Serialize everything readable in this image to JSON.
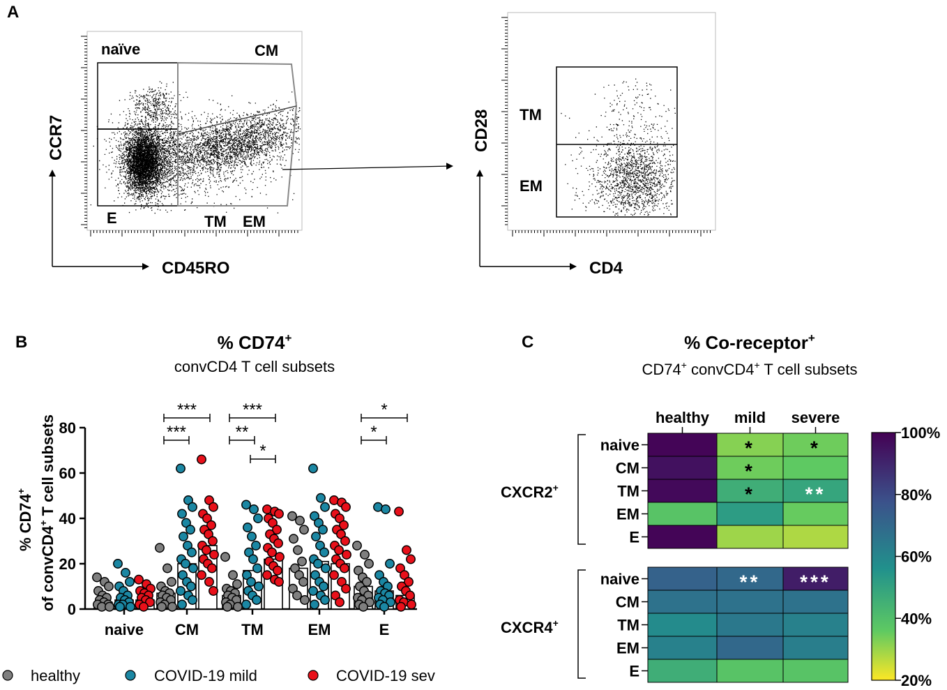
{
  "panel_a": {
    "label": "A",
    "flow1": {
      "x_axis": "CD45RO",
      "y_axis": "CCR7",
      "gates": {
        "naive": "naïve",
        "cm": "CM",
        "e": "E",
        "tm": "TM",
        "em": "EM"
      }
    },
    "flow2": {
      "x_axis": "CD4",
      "y_axis": "CD28",
      "gates": {
        "tm": "TM",
        "em": "EM"
      }
    }
  },
  "panel_b": {
    "label": "B",
    "title": "% CD74",
    "title_sup": "+",
    "subtitle": "convCD4 T cell subsets",
    "ylabel_line1": "% CD74",
    "ylabel_line1_sup": "+",
    "ylabel_line2a": "of convCD4",
    "ylabel_line2_sup": "+",
    "ylabel_line2b": " T cell subsets",
    "legend": [
      {
        "label": "healthy",
        "color": "#7f7f7f"
      },
      {
        "label": "COVID-19 mild",
        "color": "#1b87a3"
      },
      {
        "label": "COVID-19 sev",
        "color": "#e8101a"
      }
    ]
  },
  "panel_c": {
    "label": "C",
    "title": "% Co-receptor",
    "title_sup": "+",
    "subtitle_a": "CD74",
    "subtitle_sup1": "+",
    "subtitle_b": " convCD4",
    "subtitle_sup2": "+",
    "subtitle_c": " T cell subsets",
    "group1": "CXCR2",
    "group1_sup": "+",
    "group2": "CXCR4",
    "group2_sup": "+"
  },
  "chart_data": [
    {
      "type": "bar",
      "title": "% CD74+ convCD4 T cell subsets",
      "ylabel": "% CD74+ of convCD4+ T cell subsets",
      "ylim": [
        0,
        80
      ],
      "yticks": [
        "0",
        "20",
        "40",
        "60",
        "80"
      ],
      "categories": [
        "naive",
        "CM",
        "TM",
        "EM",
        "E"
      ],
      "series": [
        {
          "name": "healthy",
          "color": "#7f7f7f",
          "values": [
            3,
            7,
            6,
            18,
            10
          ],
          "points": [
            [
              14,
              12,
              10,
              8,
              6,
              5,
              4,
              3,
              2,
              2,
              1,
              1
            ],
            [
              27,
              18,
              12,
              10,
              8,
              7,
              6,
              5,
              4,
              3,
              2,
              1,
              1
            ],
            [
              23,
              15,
              11,
              9,
              8,
              7,
              6,
              5,
              4,
              3,
              2,
              1,
              1
            ],
            [
              41,
              39,
              35,
              31,
              26,
              21,
              18,
              15,
              12,
              9,
              6,
              4
            ],
            [
              28,
              24,
              20,
              17,
              14,
              12,
              10,
              8,
              6,
              5,
              4,
              3,
              2,
              1
            ]
          ]
        },
        {
          "name": "COVID-19 mild",
          "color": "#1b87a3",
          "values": [
            4,
            20,
            17,
            21,
            8
          ],
          "points": [
            [
              20,
              16,
              12,
              10,
              8,
              6,
              5,
              4,
              3,
              2,
              2,
              1,
              1
            ],
            [
              62,
              48,
              45,
              42,
              38,
              35,
              32,
              28,
              25,
              22,
              20,
              18,
              15,
              12,
              10,
              8,
              6,
              4,
              2
            ],
            [
              46,
              44,
              40,
              36,
              32,
              28,
              25,
              22,
              18,
              15,
              12,
              10,
              8,
              6,
              4,
              2
            ],
            [
              62,
              49,
              45,
              41,
              38,
              35,
              32,
              28,
              25,
              22,
              20,
              18,
              15,
              12,
              10,
              8,
              6,
              4,
              2
            ],
            [
              45,
              44,
              20,
              15,
              12,
              10,
              8,
              7,
              6,
              5,
              4,
              3,
              2,
              1
            ]
          ]
        },
        {
          "name": "COVID-19 sev",
          "color": "#e8101a",
          "values": [
            4,
            28,
            22,
            20,
            6
          ],
          "points": [
            [
              13,
              11,
              9,
              8,
              7,
              6,
              5,
              4,
              3,
              2,
              1
            ],
            [
              66,
              48,
              45,
              42,
              40,
              37,
              35,
              33,
              30,
              28,
              26,
              24,
              22,
              20,
              18,
              15,
              12,
              8
            ],
            [
              44,
              43,
              42,
              40,
              38,
              35,
              33,
              31,
              29,
              27,
              25,
              23,
              21,
              19,
              17,
              15,
              13,
              12
            ],
            [
              48,
              47,
              45,
              42,
              40,
              37,
              35,
              33,
              30,
              28,
              26,
              24,
              22,
              20,
              18,
              15,
              12,
              9,
              6,
              3
            ],
            [
              43,
              26,
              22,
              18,
              15,
              12,
              10,
              8,
              6,
              4,
              3,
              2,
              1
            ]
          ]
        }
      ],
      "significance": [
        {
          "category": "CM",
          "pair": "healthy-sev",
          "label": "***"
        },
        {
          "category": "CM",
          "pair": "healthy-mild",
          "label": "***"
        },
        {
          "category": "TM",
          "pair": "healthy-sev",
          "label": "***"
        },
        {
          "category": "TM",
          "pair": "healthy-mild",
          "label": "**"
        },
        {
          "category": "TM",
          "pair": "mild-sev",
          "label": "*"
        },
        {
          "category": "E",
          "pair": "healthy-sev",
          "label": "*"
        },
        {
          "category": "E",
          "pair": "healthy-mild",
          "label": "*"
        }
      ]
    },
    {
      "type": "heatmap",
      "title": "% Co-receptor+ CD74+ convCD4+ T cell subsets",
      "columns": [
        "healthy",
        "mild",
        "severe"
      ],
      "row_labels": [
        "naive",
        "CM",
        "TM",
        "EM",
        "E"
      ],
      "colorbar": {
        "min": 20,
        "max": 100,
        "ticks": [
          "100%",
          "80%",
          "60%",
          "40%",
          "20%"
        ]
      },
      "groups": [
        {
          "name": "CXCR2+",
          "values": [
            [
              99,
              35,
              38
            ],
            [
              96,
              38,
              40
            ],
            [
              98,
              50,
              53
            ],
            [
              42,
              56,
              39
            ],
            [
              99,
              32,
              30
            ]
          ],
          "stars": [
            [
              "",
              "*",
              "*"
            ],
            [
              "",
              "*",
              ""
            ],
            [
              "",
              "*",
              "**"
            ],
            [
              "",
              "",
              ""
            ],
            [
              "",
              "",
              ""
            ]
          ]
        },
        {
          "name": "CXCR4+",
          "values": [
            [
              75,
              73,
              93
            ],
            [
              70,
              70,
              70
            ],
            [
              62,
              68,
              65
            ],
            [
              65,
              73,
              66
            ],
            [
              50,
              42,
              42
            ]
          ],
          "stars": [
            [
              "",
              "**",
              "***"
            ],
            [
              "",
              "",
              ""
            ],
            [
              "",
              "",
              ""
            ],
            [
              "",
              "",
              ""
            ],
            [
              "",
              "",
              ""
            ]
          ]
        }
      ]
    }
  ]
}
